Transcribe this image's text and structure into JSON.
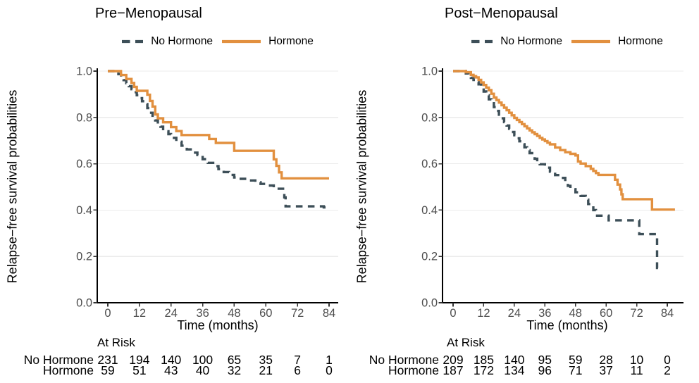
{
  "figure": {
    "background": "#ffffff",
    "xlabel": "Time (months)",
    "ylabel": "Relapse−free survival probabilities",
    "at_risk_header": "At Risk",
    "colors": {
      "no_hormone": "#3D4F58",
      "hormone": "#E2903F",
      "grid": "#EBEBEB",
      "axis": "#000000",
      "tick_mark": "#333333",
      "tick_label": "#4D4D4D"
    },
    "x_ticks": [
      {
        "value": 0,
        "label": "0"
      },
      {
        "value": 12,
        "label": "12"
      },
      {
        "value": 24,
        "label": "24"
      },
      {
        "value": 36,
        "label": "36"
      },
      {
        "value": 48,
        "label": "48"
      },
      {
        "value": 60,
        "label": "60"
      },
      {
        "value": 72,
        "label": "72"
      },
      {
        "value": 84,
        "label": "84"
      }
    ],
    "y_ticks": [
      {
        "value": 0.0,
        "label": "0.0"
      },
      {
        "value": 0.2,
        "label": "0.2"
      },
      {
        "value": 0.4,
        "label": "0.4"
      },
      {
        "value": 0.6,
        "label": "0.6"
      },
      {
        "value": 0.8,
        "label": "0.8"
      },
      {
        "value": 1.0,
        "label": "1.0"
      }
    ]
  },
  "chart_data": [
    {
      "type": "line",
      "subtype": "kaplan-meier-step",
      "title": "Pre−Menopausal",
      "xlabel": "Time (months)",
      "ylabel": "Relapse−free survival probabilities",
      "xlim": [
        0,
        84
      ],
      "ylim": [
        0.0,
        1.0
      ],
      "grid": "horizontal-only",
      "legend_position": "top-center",
      "series": [
        {
          "name": "No Hormone",
          "color": "#3D4F58",
          "linetype": "dashed",
          "points": [
            [
              0,
              1.0
            ],
            [
              4,
              0.987
            ],
            [
              5,
              0.974
            ],
            [
              6,
              0.961
            ],
            [
              7,
              0.948
            ],
            [
              8,
              0.935
            ],
            [
              9,
              0.922
            ],
            [
              10,
              0.909
            ],
            [
              11,
              0.896
            ],
            [
              12,
              0.883
            ],
            [
              13,
              0.87
            ],
            [
              14,
              0.857
            ],
            [
              15,
              0.84
            ],
            [
              16,
              0.82
            ],
            [
              17,
              0.8
            ],
            [
              18,
              0.787
            ],
            [
              19,
              0.773
            ],
            [
              20,
              0.76
            ],
            [
              21,
              0.75
            ],
            [
              22,
              0.74
            ],
            [
              23,
              0.728
            ],
            [
              24,
              0.712
            ],
            [
              26,
              0.695
            ],
            [
              28,
              0.678
            ],
            [
              30,
              0.662
            ],
            [
              32,
              0.648
            ],
            [
              34,
              0.638
            ],
            [
              36,
              0.62
            ],
            [
              38,
              0.604
            ],
            [
              40,
              0.59
            ],
            [
              42,
              0.577
            ],
            [
              44,
              0.564
            ],
            [
              46,
              0.552
            ],
            [
              48,
              0.541
            ],
            [
              50,
              0.535
            ],
            [
              53,
              0.528
            ],
            [
              56,
              0.52
            ],
            [
              58,
              0.513
            ],
            [
              61,
              0.506
            ],
            [
              63,
              0.492
            ],
            [
              67,
              0.455
            ],
            [
              67.5,
              0.416
            ],
            [
              82,
              0.412
            ],
            [
              84,
              0.412
            ]
          ]
        },
        {
          "name": "Hormone",
          "color": "#E2903F",
          "linetype": "solid",
          "points": [
            [
              0,
              1.0
            ],
            [
              5,
              0.983
            ],
            [
              7,
              0.966
            ],
            [
              9,
              0.949
            ],
            [
              10,
              0.932
            ],
            [
              11,
              0.915
            ],
            [
              15,
              0.898
            ],
            [
              16,
              0.871
            ],
            [
              17,
              0.847
            ],
            [
              18,
              0.813
            ],
            [
              19,
              0.796
            ],
            [
              21,
              0.779
            ],
            [
              24,
              0.758
            ],
            [
              26,
              0.741
            ],
            [
              28,
              0.724
            ],
            [
              38.5,
              0.707
            ],
            [
              41,
              0.69
            ],
            [
              48,
              0.656
            ],
            [
              63,
              0.619
            ],
            [
              64,
              0.591
            ],
            [
              65,
              0.563
            ],
            [
              66,
              0.537
            ],
            [
              84,
              0.537
            ]
          ]
        }
      ],
      "at_risk": {
        "rows": [
          {
            "label": "No Hormone",
            "values": [
              231,
              194,
              140,
              100,
              65,
              35,
              7,
              1
            ]
          },
          {
            "label": "Hormone",
            "values": [
              59,
              51,
              43,
              40,
              32,
              21,
              6,
              0
            ]
          }
        ]
      }
    },
    {
      "type": "line",
      "subtype": "kaplan-meier-step",
      "title": "Post−Menopausal",
      "xlabel": "Time (months)",
      "ylabel": "Relapse−free survival probabilities",
      "xlim": [
        0,
        84
      ],
      "ylim": [
        0.0,
        1.0
      ],
      "grid": "horizontal-only",
      "legend_position": "top-center",
      "series": [
        {
          "name": "No Hormone",
          "color": "#3D4F58",
          "linetype": "dashed",
          "points": [
            [
              0,
              1.0
            ],
            [
              5,
              0.99
            ],
            [
              6,
              0.981
            ],
            [
              7,
              0.971
            ],
            [
              8,
              0.962
            ],
            [
              9,
              0.952
            ],
            [
              10,
              0.943
            ],
            [
              11,
              0.928
            ],
            [
              12,
              0.912
            ],
            [
              13,
              0.895
            ],
            [
              14,
              0.878
            ],
            [
              15,
              0.861
            ],
            [
              16,
              0.845
            ],
            [
              17,
              0.828
            ],
            [
              18,
              0.812
            ],
            [
              19,
              0.796
            ],
            [
              20,
              0.78
            ],
            [
              21,
              0.765
            ],
            [
              22,
              0.751
            ],
            [
              23,
              0.737
            ],
            [
              24,
              0.723
            ],
            [
              25,
              0.71
            ],
            [
              26,
              0.697
            ],
            [
              27,
              0.684
            ],
            [
              28,
              0.671
            ],
            [
              29,
              0.658
            ],
            [
              30,
              0.646
            ],
            [
              31,
              0.634
            ],
            [
              32,
              0.622
            ],
            [
              33,
              0.61
            ],
            [
              34,
              0.598
            ],
            [
              36,
              0.583
            ],
            [
              38,
              0.566
            ],
            [
              40,
              0.551
            ],
            [
              42,
              0.539
            ],
            [
              44,
              0.521
            ],
            [
              45,
              0.505
            ],
            [
              46,
              0.49
            ],
            [
              48,
              0.477
            ],
            [
              50,
              0.461
            ],
            [
              52,
              0.445
            ],
            [
              53,
              0.426
            ],
            [
              55,
              0.4
            ],
            [
              56,
              0.376
            ],
            [
              61,
              0.356
            ],
            [
              73,
              0.296
            ],
            [
              80,
              0.15
            ],
            [
              80.5,
              0.15
            ]
          ]
        },
        {
          "name": "Hormone",
          "color": "#E2903F",
          "linetype": "solid",
          "points": [
            [
              0,
              1.0
            ],
            [
              5,
              0.995
            ],
            [
              7,
              0.984
            ],
            [
              8,
              0.978
            ],
            [
              9,
              0.973
            ],
            [
              10,
              0.962
            ],
            [
              11,
              0.951
            ],
            [
              12,
              0.94
            ],
            [
              13,
              0.929
            ],
            [
              14,
              0.918
            ],
            [
              15,
              0.902
            ],
            [
              16,
              0.886
            ],
            [
              17,
              0.875
            ],
            [
              18,
              0.864
            ],
            [
              19,
              0.853
            ],
            [
              20,
              0.842
            ],
            [
              21,
              0.831
            ],
            [
              22,
              0.82
            ],
            [
              23,
              0.809
            ],
            [
              24,
              0.798
            ],
            [
              25,
              0.789
            ],
            [
              26,
              0.78
            ],
            [
              27,
              0.771
            ],
            [
              28,
              0.762
            ],
            [
              29,
              0.753
            ],
            [
              30,
              0.744
            ],
            [
              31,
              0.736
            ],
            [
              32,
              0.728
            ],
            [
              33,
              0.72
            ],
            [
              34,
              0.712
            ],
            [
              35,
              0.705
            ],
            [
              36,
              0.698
            ],
            [
              37,
              0.691
            ],
            [
              38,
              0.684
            ],
            [
              40,
              0.67
            ],
            [
              42,
              0.659
            ],
            [
              44,
              0.65
            ],
            [
              46,
              0.643
            ],
            [
              48,
              0.636
            ],
            [
              49,
              0.61
            ],
            [
              50,
              0.601
            ],
            [
              52,
              0.59
            ],
            [
              54,
              0.578
            ],
            [
              55,
              0.569
            ],
            [
              56,
              0.56
            ],
            [
              57,
              0.552
            ],
            [
              63.5,
              0.531
            ],
            [
              64.5,
              0.51
            ],
            [
              65.5,
              0.489
            ],
            [
              66,
              0.468
            ],
            [
              66.5,
              0.447
            ],
            [
              77,
              0.447
            ],
            [
              78,
              0.402
            ],
            [
              87,
              0.402
            ]
          ]
        }
      ],
      "at_risk": {
        "rows": [
          {
            "label": "No Hormone",
            "values": [
              209,
              185,
              140,
              95,
              59,
              28,
              10,
              0
            ]
          },
          {
            "label": "Hormone",
            "values": [
              187,
              172,
              134,
              96,
              71,
              37,
              11,
              2
            ]
          }
        ]
      }
    }
  ]
}
